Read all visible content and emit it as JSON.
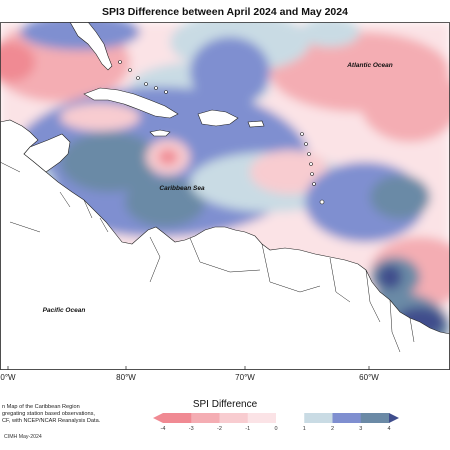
{
  "title": "SPI3 Difference between April 2024 and May 2024",
  "map": {
    "labels": {
      "atlantic": "Atlantic Ocean",
      "caribbean": "Caribbean Sea",
      "pacific": "Pacific Ocean"
    },
    "longitude_ticks": [
      "0°W",
      "80°W",
      "70°W",
      "60°W"
    ]
  },
  "legend": {
    "title": "SPI Difference",
    "ticks": [
      "-4",
      "-3",
      "-2",
      "-1",
      "0",
      "1",
      "2",
      "3",
      "4"
    ],
    "colors": [
      "#f08a93",
      "#f4adb3",
      "#f8ccd0",
      "#fbe3e6",
      "#ffffff",
      "#c9dbe4",
      "#7f8fd0",
      "#6b8aa6",
      "#3f4d8c"
    ]
  },
  "footnote": {
    "lines": [
      "n Map of the Caribbean Region",
      "gregating station based observations,",
      "CF, with NCEP/NCAR Reanalysis Data."
    ],
    "credit": "CIMH May-2024"
  }
}
